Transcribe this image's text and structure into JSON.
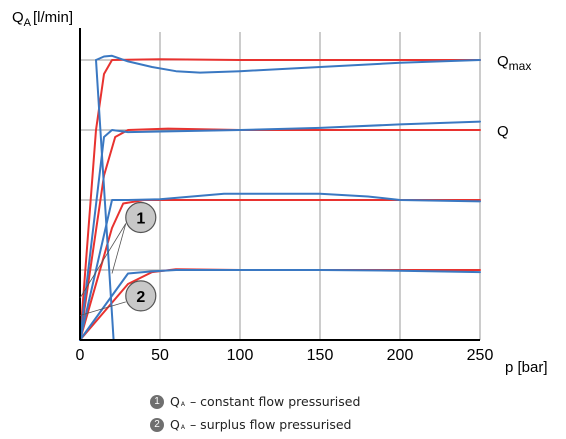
{
  "chart_data": {
    "type": "line",
    "ylabel": "Q",
    "ylabel_sub": "A",
    "ylabel_unit": "[l/min]",
    "xlabel": "p [bar]",
    "xlim": [
      0,
      250
    ],
    "ylim": [
      0,
      4.4
    ],
    "x_ticks": [
      0,
      50,
      100,
      150,
      200,
      250
    ],
    "y_grid": [
      1,
      2,
      3,
      4
    ],
    "grid": true,
    "right_labels": [
      {
        "text": "Q",
        "sub": "max",
        "y": 4.0
      },
      {
        "text": "Q",
        "sub": "",
        "y": 3.0
      }
    ],
    "callouts": [
      {
        "label": "1",
        "x": 38,
        "y": 1.75,
        "targets": [
          {
            "x": 20,
            "y": 0.95
          },
          {
            "x": 0,
            "y": 0.6
          }
        ]
      },
      {
        "label": "2",
        "x": 38,
        "y": 0.63,
        "targets": [
          {
            "x": 0,
            "y": 0.35
          }
        ]
      }
    ],
    "series": [
      {
        "group": "1",
        "color": "#e8322f",
        "points": [
          [
            0,
            0
          ],
          [
            10,
            3.0
          ],
          [
            15,
            3.8
          ],
          [
            20,
            4.0
          ],
          [
            50,
            4.01
          ],
          [
            100,
            4.0
          ],
          [
            250,
            4.0
          ]
        ]
      },
      {
        "group": "1",
        "color": "#e8322f",
        "points": [
          [
            0,
            0
          ],
          [
            15,
            2.35
          ],
          [
            22,
            2.9
          ],
          [
            30,
            3.0
          ],
          [
            55,
            3.02
          ],
          [
            100,
            3.0
          ],
          [
            250,
            3.0
          ]
        ]
      },
      {
        "group": "1",
        "color": "#e8322f",
        "points": [
          [
            0,
            0
          ],
          [
            20,
            1.6
          ],
          [
            27,
            1.95
          ],
          [
            40,
            2.0
          ],
          [
            100,
            2.0
          ],
          [
            250,
            2.0
          ]
        ]
      },
      {
        "group": "1",
        "color": "#e8322f",
        "points": [
          [
            0,
            0
          ],
          [
            30,
            0.8
          ],
          [
            45,
            0.97
          ],
          [
            60,
            1.01
          ],
          [
            100,
            1.0
          ],
          [
            250,
            1.0
          ]
        ]
      },
      {
        "group": "2",
        "color": "#3a78c2",
        "points": [
          [
            0,
            0
          ],
          [
            15,
            2.9
          ],
          [
            20,
            3.0
          ],
          [
            30,
            2.97
          ],
          [
            55,
            2.98
          ],
          [
            100,
            3.0
          ],
          [
            150,
            3.03
          ],
          [
            200,
            3.08
          ],
          [
            250,
            3.12
          ]
        ]
      },
      {
        "group": "2",
        "color": "#3a78c2",
        "points": [
          [
            0,
            0
          ],
          [
            20,
            2.0
          ],
          [
            30,
            2.0
          ],
          [
            50,
            2.01
          ],
          [
            70,
            2.05
          ],
          [
            90,
            2.09
          ],
          [
            150,
            2.09
          ],
          [
            180,
            2.05
          ],
          [
            200,
            2.0
          ],
          [
            250,
            1.98
          ]
        ]
      },
      {
        "group": "2",
        "color": "#3a78c2",
        "points": [
          [
            0,
            0
          ],
          [
            30,
            0.95
          ],
          [
            45,
            0.98
          ],
          [
            60,
            1.0
          ],
          [
            100,
            1.0
          ],
          [
            150,
            1.0
          ],
          [
            200,
            0.99
          ],
          [
            250,
            0.97
          ]
        ]
      },
      {
        "group": "2",
        "color": "#3a78c2",
        "points": [
          [
            10,
            4.0
          ],
          [
            15,
            4.05
          ],
          [
            20,
            4.06
          ],
          [
            30,
            3.98
          ],
          [
            45,
            3.9
          ],
          [
            60,
            3.84
          ],
          [
            75,
            3.82
          ],
          [
            100,
            3.84
          ],
          [
            150,
            3.9
          ],
          [
            200,
            3.96
          ],
          [
            250,
            4.0
          ]
        ]
      },
      {
        "group": "2",
        "color": "#3a78c2",
        "points": [
          [
            10,
            4.0
          ],
          [
            21,
            0
          ]
        ]
      }
    ]
  },
  "legend": [
    {
      "badge": "1",
      "symbol": "Q",
      "sub": "A",
      "text": "– constant flow pressurised"
    },
    {
      "badge": "2",
      "symbol": "Q",
      "sub": "A",
      "text": "– surplus flow pressurised"
    }
  ]
}
